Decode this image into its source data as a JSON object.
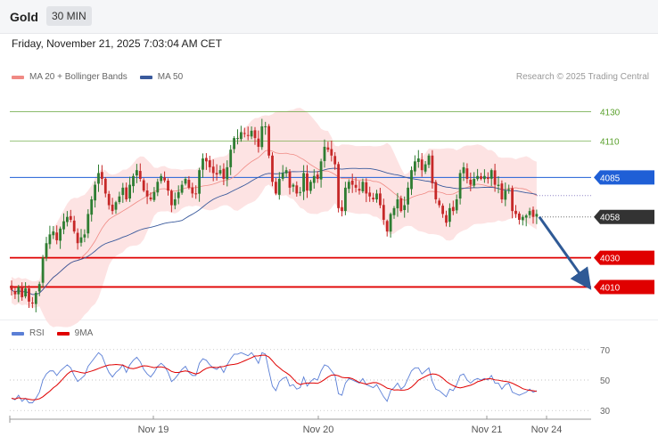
{
  "header": {
    "symbol": "Gold",
    "timeframe": "30 MIN"
  },
  "datetime": "Friday, November 21, 2025 7:03:04 AM CET",
  "legend": {
    "ma_bb": "MA 20 + Bollinger Bands",
    "ma50": "MA 50",
    "rsi": "RSI",
    "rsi_ma": "9MA"
  },
  "credit": "Research © 2025 Trading Central",
  "colors": {
    "ma20": "#f08a84",
    "ma50": "#3a5a9c",
    "bb_fill": "#fde0e0",
    "up": "#2e7d32",
    "down": "#c62828",
    "resistance": "#5aa02c",
    "pivot": "#1f5fd6",
    "support": "#e00000",
    "last": "#333333",
    "arrow": "#2f5a96",
    "rsi": "#5b7fd6",
    "rsi_ma": "#e00000"
  },
  "chart_data": [
    {
      "type": "candlestick",
      "title": "Gold",
      "timeframe": "30 MIN",
      "ylim": [
        3992,
        4148
      ],
      "x_ticks": [
        "Nov 19",
        "Nov 20",
        "Nov 21",
        "Nov 24"
      ],
      "levels": [
        {
          "value": 4130,
          "label": "4130",
          "kind": "resistance"
        },
        {
          "value": 4110,
          "label": "4110",
          "kind": "resistance"
        },
        {
          "value": 4085,
          "label": "4085",
          "kind": "pivot"
        },
        {
          "value": 4058,
          "label": "4058",
          "kind": "last"
        },
        {
          "value": 4030,
          "label": "4030",
          "kind": "support"
        },
        {
          "value": 4010,
          "label": "4010",
          "kind": "support"
        }
      ],
      "projection": {
        "from": 4058,
        "to": 4010,
        "direction": "down"
      },
      "series": [
        {
          "name": "MA 20 + Bollinger Bands",
          "kind": "ma20_bb"
        },
        {
          "name": "MA 50",
          "kind": "ma50"
        }
      ],
      "close": [
        4008,
        4005,
        4010,
        4003,
        4009,
        4000,
        3999,
        4006,
        4012,
        4030,
        4040,
        4046,
        4048,
        4042,
        4050,
        4055,
        4058,
        4056,
        4048,
        4040,
        4044,
        4046,
        4060,
        4070,
        4080,
        4088,
        4084,
        4074,
        4066,
        4062,
        4068,
        4072,
        4078,
        4070,
        4080,
        4086,
        4090,
        4084,
        4076,
        4072,
        4070,
        4075,
        4082,
        4086,
        4083,
        4076,
        4066,
        4070,
        4075,
        4080,
        4084,
        4078,
        4074,
        4074,
        4090,
        4098,
        4096,
        4092,
        4088,
        4087,
        4090,
        4084,
        4092,
        4104,
        4112,
        4112,
        4116,
        4115,
        4114,
        4117,
        4112,
        4106,
        4120,
        4120,
        4100,
        4082,
        4074,
        4084,
        4088,
        4090,
        4078,
        4080,
        4074,
        4075,
        4088,
        4076,
        4082,
        4086,
        4084,
        4096,
        4106,
        4104,
        4100,
        4094,
        4064,
        4062,
        4078,
        4082,
        4080,
        4078,
        4076,
        4082,
        4074,
        4072,
        4070,
        4074,
        4066,
        4056,
        4048,
        4060,
        4064,
        4070,
        4062,
        4066,
        4078,
        4090,
        4096,
        4098,
        4090,
        4094,
        4100,
        4081,
        4070,
        4066,
        4060,
        4054,
        4064,
        4062,
        4070,
        4088,
        4092,
        4084,
        4080,
        4084,
        4086,
        4084,
        4086,
        4084,
        4090,
        4080,
        4080,
        4070,
        4076,
        4077,
        4062,
        4060,
        4056,
        4058,
        4059,
        4062,
        4058,
        4060
      ]
    },
    {
      "type": "line",
      "title": "RSI",
      "ylim": [
        26,
        74
      ],
      "y_ticks": [
        70,
        50,
        30
      ],
      "series": [
        {
          "name": "RSI"
        },
        {
          "name": "9MA"
        }
      ],
      "rsi": [
        38,
        37,
        40,
        36,
        38,
        35,
        35,
        38,
        42,
        50,
        54,
        56,
        56,
        53,
        56,
        58,
        60,
        58,
        53,
        49,
        51,
        53,
        59,
        62,
        65,
        68,
        66,
        60,
        55,
        52,
        55,
        57,
        60,
        55,
        60,
        63,
        65,
        62,
        57,
        54,
        52,
        55,
        59,
        61,
        59,
        55,
        49,
        51,
        54,
        57,
        59,
        55,
        53,
        53,
        61,
        64,
        63,
        60,
        58,
        57,
        59,
        55,
        60,
        64,
        67,
        67,
        68,
        67,
        66,
        68,
        65,
        61,
        68,
        67,
        56,
        46,
        43,
        49,
        51,
        52,
        46,
        47,
        44,
        45,
        52,
        46,
        49,
        51,
        50,
        56,
        60,
        59,
        56,
        53,
        41,
        40,
        48,
        51,
        50,
        49,
        48,
        51,
        47,
        46,
        45,
        47,
        43,
        39,
        36,
        43,
        45,
        48,
        44,
        46,
        51,
        56,
        58,
        58,
        54,
        56,
        58,
        49,
        44,
        43,
        41,
        39,
        44,
        43,
        47,
        53,
        54,
        50,
        48,
        50,
        51,
        50,
        51,
        50,
        53,
        48,
        48,
        44,
        47,
        48,
        42,
        41,
        40,
        41,
        42,
        44,
        42,
        43
      ]
    }
  ]
}
